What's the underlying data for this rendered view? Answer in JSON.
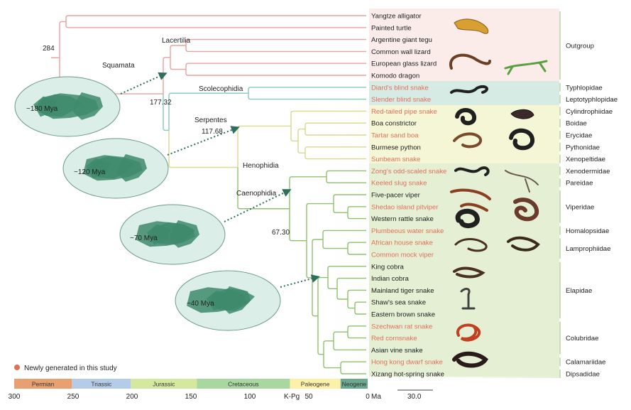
{
  "taxa": [
    {
      "name": "Yangtze alligator",
      "new": false
    },
    {
      "name": "Painted turtle",
      "new": false
    },
    {
      "name": "Argentine giant tegu",
      "new": false
    },
    {
      "name": "Common wall lizard",
      "new": false
    },
    {
      "name": "European glass lizard",
      "new": false
    },
    {
      "name": "Komodo dragon",
      "new": false
    },
    {
      "name": "Diard's blind snake",
      "new": true
    },
    {
      "name": "Slender blind snake",
      "new": true
    },
    {
      "name": "Red-tailed pipe snake",
      "new": true
    },
    {
      "name": "Boa constrictor",
      "new": false
    },
    {
      "name": "Tartar sand boa",
      "new": true
    },
    {
      "name": "Burmese python",
      "new": false
    },
    {
      "name": "Sunbeam snake",
      "new": true
    },
    {
      "name": "Zong's odd-scaled snake",
      "new": true
    },
    {
      "name": "Keeled slug snake",
      "new": true
    },
    {
      "name": "Five-pacer viper",
      "new": false
    },
    {
      "name": "Shedao island pitviper",
      "new": true
    },
    {
      "name": "Western rattle snake",
      "new": false
    },
    {
      "name": "Plumbeous water snake",
      "new": true
    },
    {
      "name": "African house snake",
      "new": true
    },
    {
      "name": "Common mock viper",
      "new": true
    },
    {
      "name": "King cobra",
      "new": false
    },
    {
      "name": "Indian cobra",
      "new": false
    },
    {
      "name": "Mainland tiger snake",
      "new": false
    },
    {
      "name": "Shaw's sea snake",
      "new": false
    },
    {
      "name": "Eastern brown snake",
      "new": false
    },
    {
      "name": "Szechwan rat snake",
      "new": true
    },
    {
      "name": "Red cornsnake",
      "new": true
    },
    {
      "name": "Asian vine snake",
      "new": false
    },
    {
      "name": "Hong kong dwarf snake",
      "new": true
    },
    {
      "name": "Xizang hot-spring snake",
      "new": false
    }
  ],
  "families": [
    {
      "name": "Outgroup",
      "rows": [
        0,
        5
      ]
    },
    {
      "name": "Typhlopidae",
      "rows": [
        6,
        6
      ]
    },
    {
      "name": "Leptotyphlopidae",
      "rows": [
        7,
        7
      ]
    },
    {
      "name": "Cylindrophiidae",
      "rows": [
        8,
        8
      ]
    },
    {
      "name": "Boidae",
      "rows": [
        9,
        9
      ]
    },
    {
      "name": "Erycidae",
      "rows": [
        10,
        10
      ]
    },
    {
      "name": "Pythonidae",
      "rows": [
        11,
        11
      ]
    },
    {
      "name": "Xenopeltidae",
      "rows": [
        12,
        12
      ]
    },
    {
      "name": "Xenodermidae",
      "rows": [
        13,
        13
      ]
    },
    {
      "name": "Pareidae",
      "rows": [
        14,
        14
      ]
    },
    {
      "name": "Viperidae",
      "rows": [
        15,
        17
      ]
    },
    {
      "name": "Homalopsidae",
      "rows": [
        18,
        18
      ]
    },
    {
      "name": "Lamprophiidae",
      "rows": [
        19,
        20
      ]
    },
    {
      "name": "Elapidae",
      "rows": [
        21,
        25
      ]
    },
    {
      "name": "Colubridae",
      "rows": [
        26,
        28
      ]
    },
    {
      "name": "Calamariidae",
      "rows": [
        29,
        29
      ]
    },
    {
      "name": "Dipsadidae",
      "rows": [
        30,
        30
      ]
    }
  ],
  "clades": {
    "squamata": "Squamata",
    "lacertilia": "Lacertilia",
    "scolecophidia": "Scolecophidia",
    "serpentes": "Serpentes",
    "henophidia": "Henophidia",
    "caenophidia": "Caenophidia"
  },
  "node_ages": {
    "root": "284",
    "squamata": "177.32",
    "serpentes": "117.68",
    "caenophidia": "67.30"
  },
  "globes": [
    {
      "label": "~180 Mya"
    },
    {
      "label": "~120 Mya"
    },
    {
      "label": "~70 Mya"
    },
    {
      "label": "~40 Mya"
    }
  ],
  "legend": {
    "text": "Newly generated in this study",
    "color": "#e0705a"
  },
  "timescale": {
    "periods": [
      {
        "name": "Permian",
        "start": 300,
        "end": 251,
        "color": "#e8a070"
      },
      {
        "name": "Triassic",
        "start": 251,
        "end": 201,
        "color": "#b5cce8"
      },
      {
        "name": "Jurassic",
        "start": 201,
        "end": 145,
        "color": "#d5e8a0"
      },
      {
        "name": "Cretaceous",
        "start": 145,
        "end": 66,
        "color": "#a8d8a0"
      },
      {
        "name": "Paleogene",
        "start": 66,
        "end": 23,
        "color": "#fdf0a8"
      },
      {
        "name": "Neogene",
        "start": 23,
        "end": 0,
        "color": "#6aa890"
      }
    ],
    "ticks": [
      "300",
      "250",
      "200",
      "150",
      "100",
      "50",
      "0"
    ],
    "kpg": "K-Pg",
    "unit": "Ma",
    "scalebar": "30.0"
  },
  "colors": {
    "outgroup_branch": "#e8a0a0",
    "scoleco_branch": "#88c8c0",
    "henophidia_branch": "#d8d890",
    "caenophidia_branch": "#90c070",
    "new_taxon": "#e0705a",
    "globe_ocean": "#dceee8",
    "globe_land": "#3e8a6c"
  }
}
